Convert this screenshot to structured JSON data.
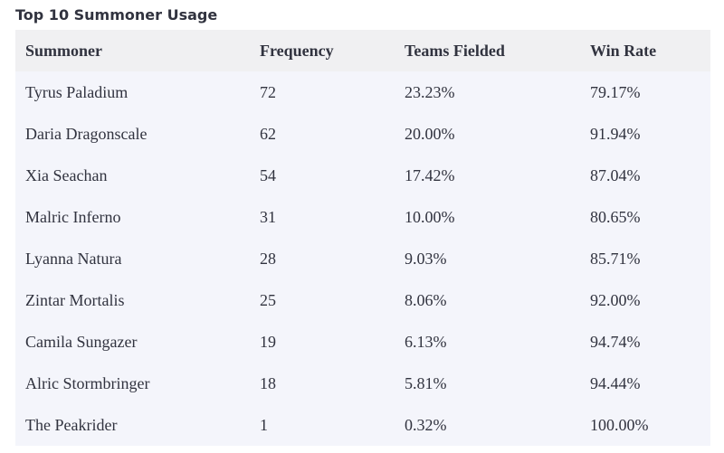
{
  "title": "Top 10 Summoner Usage",
  "table": {
    "header": [
      "Summoner",
      "Frequency",
      "Teams Fielded",
      "Win Rate"
    ],
    "rows": [
      [
        "Tyrus Paladium",
        "72",
        "23.23%",
        "79.17%"
      ],
      [
        "Daria Dragonscale",
        "62",
        "20.00%",
        "91.94%"
      ],
      [
        "Xia Seachan",
        "54",
        "17.42%",
        "87.04%"
      ],
      [
        "Malric Inferno",
        "31",
        "10.00%",
        "80.65%"
      ],
      [
        "Lyanna Natura",
        "28",
        "9.03%",
        "85.71%"
      ],
      [
        "Zintar Mortalis",
        "25",
        "8.06%",
        "92.00%"
      ],
      [
        "Camila Sungazer",
        "19",
        "6.13%",
        "94.74%"
      ],
      [
        "Alric Stormbringer",
        "18",
        "5.81%",
        "94.44%"
      ],
      [
        "The Peakrider",
        "1",
        "0.32%",
        "100.00%"
      ]
    ]
  }
}
